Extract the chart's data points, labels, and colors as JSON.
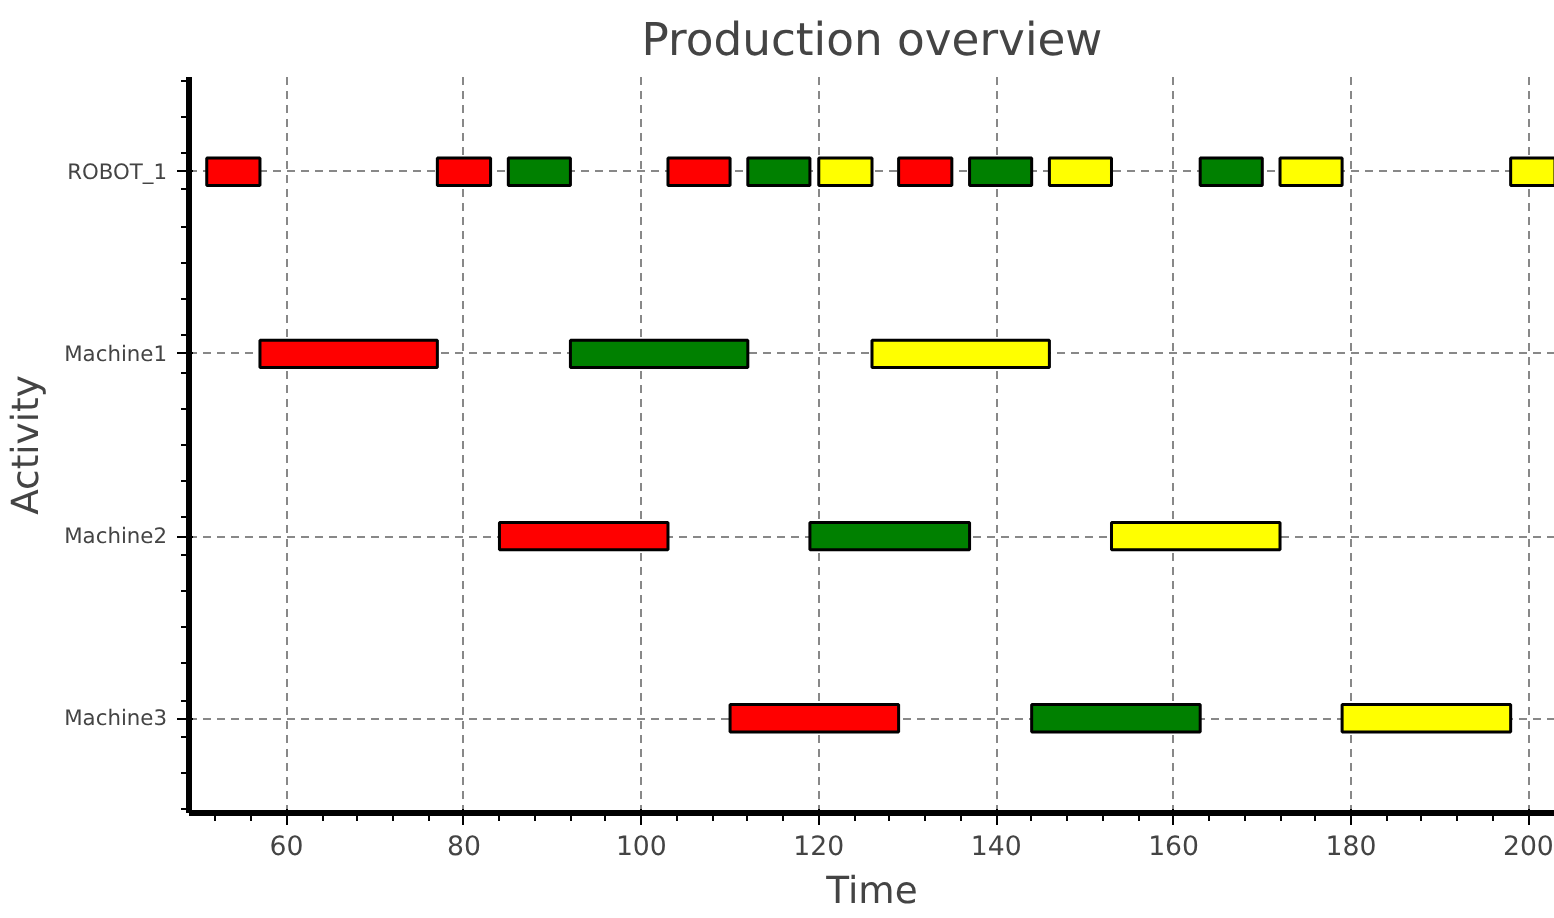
{
  "chart_data": {
    "type": "bar",
    "orientation": "horizontal",
    "title": "Production overview",
    "xlabel": "Time",
    "ylabel": "Activity",
    "categories": [
      "ROBOT_1",
      "Machine1",
      "Machine2",
      "Machine3"
    ],
    "series": [
      {
        "color": "#ff0000",
        "base": [
          51,
          57,
          null,
          null
        ],
        "values": [
          6,
          20,
          null,
          null
        ]
      },
      {
        "color": "#ff0000",
        "base": [
          77,
          null,
          84,
          null
        ],
        "values": [
          6,
          null,
          19,
          null
        ]
      },
      {
        "color": "#ff0000",
        "base": [
          103,
          null,
          null,
          110
        ],
        "values": [
          7,
          null,
          null,
          19
        ]
      },
      {
        "color": "#ff0000",
        "base": [
          129,
          null,
          null,
          null
        ],
        "values": [
          6,
          null,
          null,
          null
        ]
      },
      {
        "color": "#008000",
        "base": [
          85,
          92,
          null,
          null
        ],
        "values": [
          7,
          20,
          null,
          null
        ]
      },
      {
        "color": "#008000",
        "base": [
          112,
          null,
          119,
          null
        ],
        "values": [
          7,
          null,
          18,
          null
        ]
      },
      {
        "color": "#008000",
        "base": [
          137,
          null,
          null,
          144
        ],
        "values": [
          7,
          null,
          null,
          19
        ]
      },
      {
        "color": "#008000",
        "base": [
          163,
          null,
          null,
          null
        ],
        "values": [
          7,
          null,
          null,
          null
        ]
      },
      {
        "color": "#ffff00",
        "base": [
          120,
          126,
          null,
          null
        ],
        "values": [
          6,
          20,
          null,
          null
        ]
      },
      {
        "color": "#ffff00",
        "base": [
          146,
          null,
          153,
          null
        ],
        "values": [
          7,
          null,
          19,
          null
        ]
      },
      {
        "color": "#ffff00",
        "base": [
          172,
          null,
          null,
          179
        ],
        "values": [
          7,
          null,
          null,
          19
        ]
      },
      {
        "color": "#ffff00",
        "base": [
          198,
          null,
          null,
          null
        ],
        "values": [
          5,
          null,
          null,
          null
        ]
      }
    ],
    "xlim": [
      49,
      203
    ],
    "xticks": [
      60,
      80,
      100,
      120,
      140,
      160,
      180,
      200
    ],
    "grid": true
  }
}
